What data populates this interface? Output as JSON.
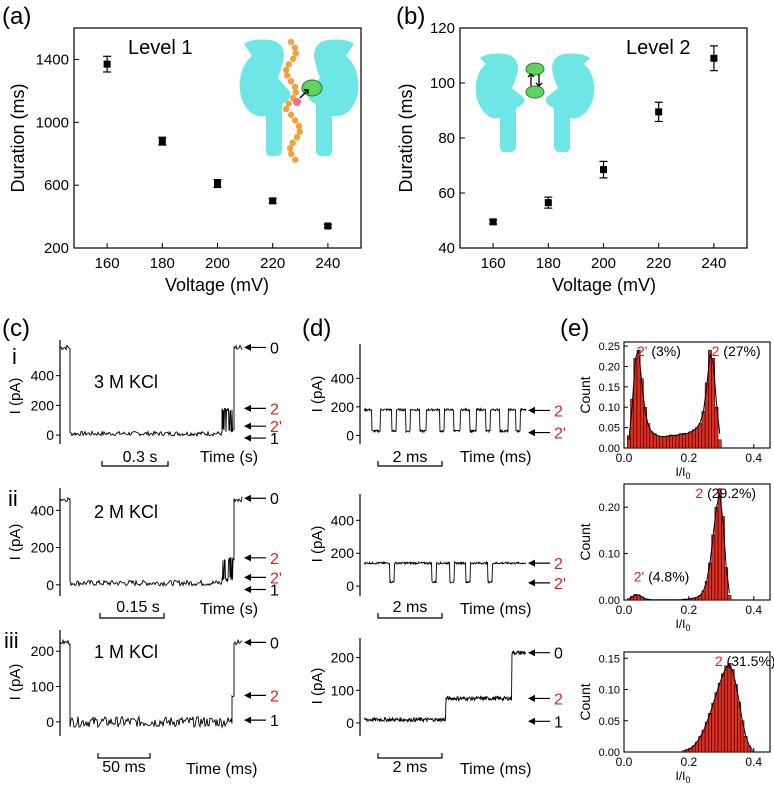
{
  "chart_data": [
    {
      "id": "a",
      "type": "scatter",
      "panel_label": "(a)",
      "title": "Level 1",
      "xlabel": "Voltage (mV)",
      "ylabel": "Duration (ms)",
      "xlim": [
        148,
        252
      ],
      "ylim": [
        200,
        1600
      ],
      "xticks": [
        "160",
        "180",
        "200",
        "220",
        "240"
      ],
      "yticks": [
        "200",
        "600",
        "1000",
        "1400"
      ],
      "x": [
        160,
        180,
        200,
        220,
        240
      ],
      "y": [
        1370,
        880,
        610,
        500,
        340
      ],
      "err": [
        50,
        25,
        25,
        15,
        10
      ]
    },
    {
      "id": "b",
      "type": "scatter",
      "panel_label": "(b)",
      "title": "Level 2",
      "xlabel": "Voltage (mV)",
      "ylabel": "Duration (ms)",
      "xlim": [
        148,
        252
      ],
      "ylim": [
        40,
        120
      ],
      "xticks": [
        "160",
        "180",
        "200",
        "220",
        "240"
      ],
      "yticks": [
        "40",
        "60",
        "80",
        "100",
        "120"
      ],
      "x": [
        160,
        180,
        200,
        220,
        240
      ],
      "y": [
        49.5,
        56.5,
        68.5,
        89.5,
        109
      ],
      "err": [
        0.8,
        2,
        3,
        3.5,
        4.5
      ]
    },
    {
      "id": "c",
      "type": "line",
      "panel_label": "(c)",
      "ylabel": "I (pA)",
      "rows": [
        {
          "roman": "i",
          "condition": "3 M KCl",
          "ylim": [
            -60,
            640
          ],
          "yticks": [
            "0",
            "200",
            "400"
          ],
          "scale_label": "0.3 s",
          "time_label": "Time (s)",
          "open": 590,
          "level1": 10,
          "level2": 170,
          "level2p": 30,
          "level_labels": [
            {
              "text": "0",
              "y": 590
            },
            {
              "text": "2",
              "y": 180
            },
            {
              "text": "2'",
              "y": 60
            },
            {
              "text": "1",
              "y": -20
            }
          ]
        },
        {
          "roman": "ii",
          "condition": "2 M KCl",
          "ylim": [
            -60,
            520
          ],
          "yticks": [
            "0",
            "200",
            "400"
          ],
          "scale_label": "0.15 s",
          "time_label": "Time (s)",
          "open": 460,
          "level1": 10,
          "level2": 140,
          "level2p": 30,
          "level_labels": [
            {
              "text": "0",
              "y": 465
            },
            {
              "text": "2",
              "y": 145
            },
            {
              "text": "2'",
              "y": 40
            },
            {
              "text": "1",
              "y": -25
            }
          ]
        },
        {
          "roman": "iii",
          "condition": "1 M KCl",
          "ylim": [
            -40,
            260
          ],
          "yticks": [
            "0",
            "100",
            "200"
          ],
          "scale_label": "50 ms",
          "time_label": "Time (ms)",
          "open": 225,
          "level1": 0,
          "level2": 75,
          "level2p": 0,
          "level_labels": [
            {
              "text": "0",
              "y": 225
            },
            {
              "text": "2",
              "y": 75
            },
            {
              "text": "1",
              "y": 5
            }
          ]
        }
      ]
    },
    {
      "id": "d",
      "type": "line",
      "panel_label": "(d)",
      "ylabel": "I (pA)",
      "rows": [
        {
          "ylim": [
            -60,
            640
          ],
          "yticks": [
            "0",
            "200",
            "400"
          ],
          "scale_label": "2 ms",
          "time_label": "Time (ms)",
          "level_labels": [
            {
              "text": "2",
              "y": 175
            },
            {
              "text": "2'",
              "y": 20
            }
          ]
        },
        {
          "ylim": [
            -60,
            560
          ],
          "yticks": [
            "0",
            "200",
            "400"
          ],
          "scale_label": "2 ms",
          "time_label": "Time (ms)",
          "level_labels": [
            {
              "text": "2",
              "y": 140
            },
            {
              "text": "2'",
              "y": 20
            }
          ]
        },
        {
          "ylim": [
            -40,
            260
          ],
          "yticks": [
            "0",
            "100",
            "200"
          ],
          "scale_label": "2 ms",
          "time_label": "Time (ms)",
          "level_labels": [
            {
              "text": "0",
              "y": 215
            },
            {
              "text": "2",
              "y": 75
            },
            {
              "text": "1",
              "y": 5
            }
          ]
        }
      ]
    },
    {
      "id": "e",
      "type": "bar",
      "panel_label": "(e)",
      "xlabel": "I/I",
      "xlabel_sub": "0",
      "ylabel": "Count",
      "rows": [
        {
          "xlim": [
            0,
            0.45
          ],
          "xticks": [
            "0.0",
            "0.2",
            "0.4"
          ],
          "ylim": [
            0,
            0.26
          ],
          "yticks": [
            "0.00",
            "0.05",
            "0.10",
            "0.15",
            "0.20",
            "0.25"
          ],
          "annotations": [
            {
              "red": "2'",
              "black": "(3%)",
              "x": 0.04
            },
            {
              "red": "2",
              "black": "(27%)",
              "x": 0.27
            }
          ],
          "bin_width": 0.01,
          "bin_centers": [
            0.015,
            0.025,
            0.035,
            0.045,
            0.055,
            0.065,
            0.075,
            0.085,
            0.095,
            0.105,
            0.115,
            0.125,
            0.135,
            0.145,
            0.155,
            0.165,
            0.175,
            0.185,
            0.195,
            0.205,
            0.215,
            0.225,
            0.235,
            0.245,
            0.255,
            0.265,
            0.275,
            0.285,
            0.295
          ],
          "values": [
            0.03,
            0.12,
            0.22,
            0.24,
            0.17,
            0.1,
            0.06,
            0.04,
            0.035,
            0.03,
            0.028,
            0.028,
            0.03,
            0.032,
            0.03,
            0.032,
            0.035,
            0.036,
            0.035,
            0.04,
            0.045,
            0.05,
            0.06,
            0.09,
            0.16,
            0.24,
            0.22,
            0.1,
            0.02
          ],
          "fit": [
            0.02,
            0.1,
            0.22,
            0.24,
            0.16,
            0.09,
            0.055,
            0.04,
            0.033,
            0.03,
            0.028,
            0.028,
            0.029,
            0.03,
            0.031,
            0.032,
            0.033,
            0.034,
            0.036,
            0.039,
            0.043,
            0.05,
            0.062,
            0.09,
            0.15,
            0.23,
            0.21,
            0.11,
            0.035
          ]
        },
        {
          "xlim": [
            0,
            0.45
          ],
          "xticks": [
            "0.0",
            "0.2",
            "0.4"
          ],
          "ylim": [
            0,
            0.25
          ],
          "yticks": [
            "0.00",
            "0.10",
            "0.20"
          ],
          "annotations": [
            {
              "red": "2",
              "black": "(29.2%)",
              "x": 0.22
            },
            {
              "red": "2'",
              "black": "(4.8%)",
              "x": 0.03
            }
          ],
          "bin_width": 0.01,
          "bin_centers": [
            0.015,
            0.025,
            0.035,
            0.045,
            0.055,
            0.065,
            0.075,
            0.085,
            0.095,
            0.105,
            0.115,
            0.125,
            0.135,
            0.145,
            0.155,
            0.165,
            0.175,
            0.185,
            0.195,
            0.205,
            0.215,
            0.225,
            0.235,
            0.245,
            0.255,
            0.265,
            0.275,
            0.285,
            0.295,
            0.305,
            0.315,
            0.325
          ],
          "values": [
            0.003,
            0.008,
            0.012,
            0.011,
            0.007,
            0.003,
            0.002,
            0.001,
            0.001,
            0.001,
            0.001,
            0.001,
            0.001,
            0.001,
            0.001,
            0.001,
            0.001,
            0.002,
            0.002,
            0.003,
            0.004,
            0.006,
            0.01,
            0.02,
            0.04,
            0.08,
            0.14,
            0.2,
            0.24,
            0.18,
            0.07,
            0.01
          ],
          "fit": [
            0.002,
            0.007,
            0.011,
            0.011,
            0.007,
            0.003,
            0.001,
            0,
            0,
            0,
            0,
            0,
            0,
            0,
            0,
            0,
            0,
            0.001,
            0.002,
            0.003,
            0.004,
            0.006,
            0.01,
            0.02,
            0.04,
            0.08,
            0.14,
            0.2,
            0.23,
            0.17,
            0.07,
            0.015
          ]
        },
        {
          "xlim": [
            0,
            0.45
          ],
          "xticks": [
            "0.0",
            "0.2",
            "0.4"
          ],
          "ylim": [
            0,
            0.16
          ],
          "yticks": [
            "0.00",
            "0.05",
            "0.10",
            "0.15"
          ],
          "annotations": [
            {
              "red": "2",
              "black": "(31.5%)",
              "x": 0.28
            }
          ],
          "bin_width": 0.01,
          "bin_centers": [
            0.185,
            0.195,
            0.205,
            0.215,
            0.225,
            0.235,
            0.245,
            0.255,
            0.265,
            0.275,
            0.285,
            0.295,
            0.305,
            0.315,
            0.325,
            0.335,
            0.345,
            0.355,
            0.365,
            0.375,
            0.385,
            0.395
          ],
          "values": [
            0.002,
            0.004,
            0.006,
            0.01,
            0.016,
            0.025,
            0.035,
            0.048,
            0.062,
            0.078,
            0.095,
            0.11,
            0.125,
            0.138,
            0.142,
            0.132,
            0.108,
            0.08,
            0.05,
            0.025,
            0.01,
            0.003
          ],
          "fit": [
            0.002,
            0.004,
            0.006,
            0.01,
            0.016,
            0.024,
            0.034,
            0.047,
            0.061,
            0.077,
            0.094,
            0.11,
            0.124,
            0.135,
            0.14,
            0.13,
            0.108,
            0.08,
            0.05,
            0.026,
            0.011,
            0.004
          ]
        }
      ]
    }
  ],
  "colors": {
    "pore": "#6fe6e6",
    "chain": "#f2a23a",
    "protein": "#5fd25f",
    "label_red": "#e02020",
    "bar_red": "#e32b1e"
  }
}
